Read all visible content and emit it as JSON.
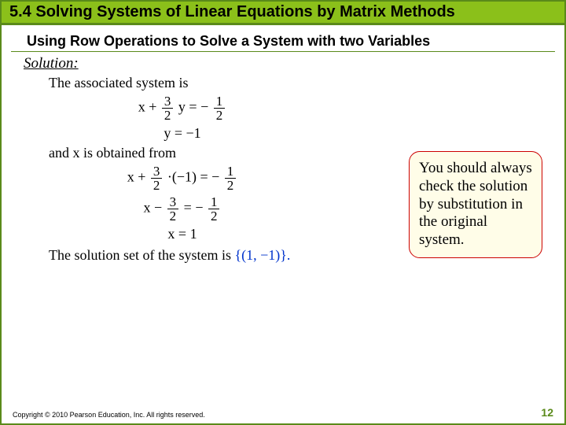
{
  "header": {
    "title": "5.4 Solving Systems of Linear Equations by Matrix Methods"
  },
  "subtitle": "Using Row Operations to Solve a System with two Variables",
  "solution_label": "Solution:",
  "body": {
    "line1": "The associated system is",
    "eq1_lhs": "x +",
    "eq1_frac_num": "3",
    "eq1_frac_den": "2",
    "eq1_mid": " y = −",
    "eq1_rfrac_num": "1",
    "eq1_rfrac_den": "2",
    "eq2": "y = −1",
    "line2": "and x is obtained from",
    "eq3_a": "x +",
    "eq3_fnum": "3",
    "eq3_fden": "2",
    "eq3_b": "·(−1) = −",
    "eq3_rnum": "1",
    "eq3_rden": "2",
    "eq4_a": "x −",
    "eq4_fnum": "3",
    "eq4_fden": "2",
    "eq4_b": " = −",
    "eq4_rnum": "1",
    "eq4_rden": "2",
    "eq5": "x = 1",
    "line3_a": "The solution set of the system is ",
    "line3_set": "{(1, −1)}.",
    "callout": "You should always check the solution by substitution in the original system."
  },
  "footer": {
    "copyright": "Copyright © 2010 Pearson Education, Inc. All rights reserved.",
    "page": "12"
  }
}
